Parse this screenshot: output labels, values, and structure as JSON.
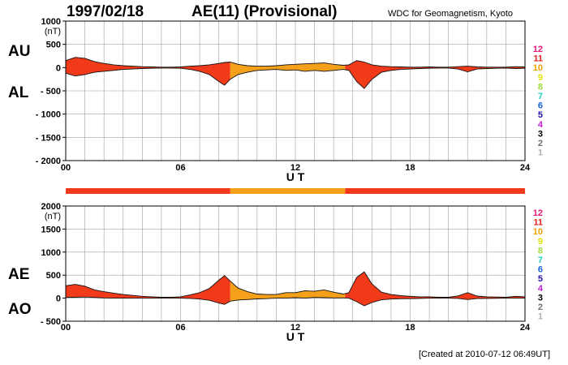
{
  "header": {
    "date": "1997/02/18",
    "title": "AE(11) (Provisional)",
    "org": "WDC for Geomagnetism, Kyoto"
  },
  "footer": {
    "created": "[Created at 2010-07-12 06:49UT]"
  },
  "scale_legend": {
    "labels": [
      "12",
      "11",
      "10",
      "9",
      "8",
      "7",
      "6",
      "5",
      "4",
      "3",
      "2",
      "1"
    ],
    "colors": [
      "#e8177a",
      "#e8201a",
      "#f0a000",
      "#e0e000",
      "#a0e040",
      "#20d0c0",
      "#1060e0",
      "#2010b0",
      "#c020d0",
      "#000000",
      "#707070",
      "#b0b0b0"
    ]
  },
  "colors": {
    "level_11": "#f03a1a",
    "level_10": "#f5a01a",
    "grid": "#a0a0a0"
  },
  "bar": {
    "segments": [
      {
        "from_ut": 0,
        "to_ut": 8.6,
        "level": "11"
      },
      {
        "from_ut": 8.6,
        "to_ut": 14.6,
        "level": "10"
      },
      {
        "from_ut": 14.6,
        "to_ut": 24,
        "level": "11"
      }
    ]
  },
  "chart_data": [
    {
      "type": "area",
      "panel": "AU/AL",
      "left_labels": [
        "AU",
        "AL"
      ],
      "ylabel": "(nT)",
      "xlabel": "U T",
      "ylim": [
        -2000,
        1000
      ],
      "yticks": [
        1000,
        500,
        0,
        -500,
        -1000,
        -1500,
        -2000
      ],
      "ytick_labels": [
        "1000",
        "500",
        "0",
        "- 500",
        "- 1000",
        "- 1500",
        "- 2000"
      ],
      "xlim": [
        0,
        24
      ],
      "xticks": [
        0,
        6,
        12,
        18,
        24
      ],
      "xtick_labels": [
        "00",
        "06",
        "12",
        "18",
        "24"
      ],
      "grid": true,
      "x": [
        0,
        0.5,
        1,
        1.5,
        2,
        2.5,
        3,
        3.5,
        4,
        4.5,
        5,
        5.5,
        6,
        6.5,
        7,
        7.5,
        8,
        8.3,
        8.6,
        9,
        9.5,
        10,
        10.5,
        11,
        11.5,
        12,
        12.5,
        13,
        13.5,
        14,
        14.5,
        14.8,
        15.2,
        15.6,
        16,
        16.5,
        17,
        17.5,
        18,
        18.5,
        19,
        19.5,
        20,
        20.5,
        21,
        21.5,
        22,
        22.5,
        23,
        23.5,
        24
      ],
      "series": [
        {
          "name": "AU",
          "values": [
            150,
            220,
            200,
            130,
            90,
            60,
            40,
            30,
            20,
            15,
            10,
            10,
            15,
            30,
            40,
            60,
            90,
            110,
            120,
            70,
            40,
            30,
            30,
            40,
            60,
            70,
            80,
            90,
            100,
            70,
            50,
            60,
            150,
            120,
            60,
            30,
            20,
            15,
            10,
            10,
            15,
            10,
            10,
            20,
            30,
            15,
            10,
            10,
            10,
            20,
            15
          ]
        },
        {
          "name": "AL",
          "values": [
            -120,
            -180,
            -150,
            -100,
            -80,
            -60,
            -40,
            -30,
            -20,
            -15,
            -10,
            -10,
            -15,
            -40,
            -80,
            -150,
            -300,
            -380,
            -250,
            -150,
            -100,
            -60,
            -50,
            -40,
            -60,
            -50,
            -80,
            -60,
            -80,
            -60,
            -40,
            -60,
            -300,
            -450,
            -250,
            -100,
            -60,
            -40,
            -30,
            -20,
            -15,
            -10,
            -10,
            -30,
            -90,
            -30,
            -20,
            -15,
            -10,
            -20,
            -15
          ]
        }
      ]
    },
    {
      "type": "area",
      "panel": "AE/AO",
      "left_labels": [
        "AE",
        "AO"
      ],
      "ylabel": "(nT)",
      "xlabel": "U T",
      "ylim": [
        -500,
        2000
      ],
      "yticks": [
        2000,
        1500,
        1000,
        500,
        0,
        -500
      ],
      "ytick_labels": [
        "2000",
        "1500",
        "1000",
        "500",
        "0",
        "- 500"
      ],
      "xlim": [
        0,
        24
      ],
      "xticks": [
        0,
        6,
        12,
        18,
        24
      ],
      "xtick_labels": [
        "00",
        "06",
        "12",
        "18",
        "24"
      ],
      "grid": true,
      "x": [
        0,
        0.5,
        1,
        1.5,
        2,
        2.5,
        3,
        3.5,
        4,
        4.5,
        5,
        5.5,
        6,
        6.5,
        7,
        7.5,
        8,
        8.3,
        8.6,
        9,
        9.5,
        10,
        10.5,
        11,
        11.5,
        12,
        12.5,
        13,
        13.5,
        14,
        14.5,
        14.8,
        15.2,
        15.6,
        16,
        16.5,
        17,
        17.5,
        18,
        18.5,
        19,
        19.5,
        20,
        20.5,
        21,
        21.5,
        22,
        22.5,
        23,
        23.5,
        24
      ],
      "series": [
        {
          "name": "AE",
          "values": [
            270,
            300,
            260,
            180,
            140,
            110,
            80,
            60,
            40,
            30,
            20,
            20,
            30,
            70,
            120,
            210,
            390,
            490,
            370,
            220,
            140,
            90,
            80,
            80,
            120,
            120,
            160,
            150,
            180,
            130,
            90,
            120,
            450,
            570,
            310,
            130,
            80,
            55,
            40,
            30,
            30,
            20,
            20,
            50,
            120,
            45,
            30,
            25,
            20,
            40,
            30
          ]
        },
        {
          "name": "AO",
          "values": [
            15,
            20,
            25,
            15,
            5,
            0,
            0,
            0,
            0,
            0,
            0,
            0,
            0,
            -5,
            -20,
            -45,
            -105,
            -135,
            -65,
            -40,
            -30,
            -15,
            -10,
            0,
            0,
            10,
            0,
            15,
            10,
            5,
            5,
            0,
            -75,
            -165,
            -95,
            -35,
            -20,
            -12,
            -10,
            -5,
            0,
            0,
            0,
            -5,
            -30,
            -8,
            -5,
            -3,
            0,
            0,
            0
          ]
        }
      ]
    }
  ]
}
